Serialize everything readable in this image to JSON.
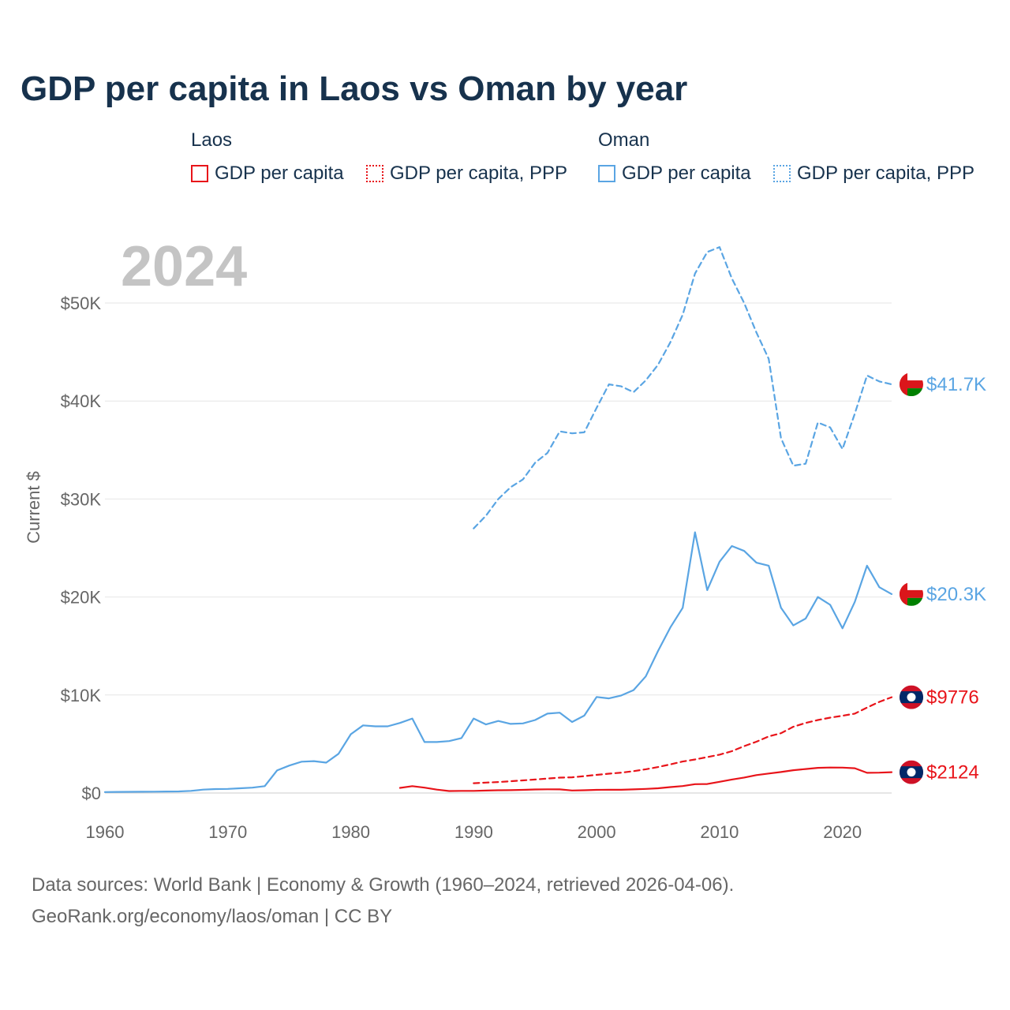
{
  "title": "GDP per capita in Laos vs Oman by year",
  "legend": {
    "groups": [
      {
        "name": "Laos",
        "items": [
          "GDP per capita",
          "GDP per capita, PPP"
        ],
        "color": "#e8141a"
      },
      {
        "name": "Oman",
        "items": [
          "GDP per capita",
          "GDP per capita, PPP"
        ],
        "color": "#5aa5e3"
      }
    ]
  },
  "year_watermark": "2024",
  "footer": {
    "line1": "Data sources: World Bank | Economy & Growth (1960–2024, retrieved 2026-04-06).",
    "line2": "GeoRank.org/economy/laos/oman | CC BY"
  },
  "chart_data": {
    "type": "line",
    "title": "GDP per capita in Laos vs Oman by year",
    "xlabel": "",
    "ylabel": "Current $",
    "xlim": [
      1960,
      2024
    ],
    "ylim": [
      0,
      55000
    ],
    "x_ticks": [
      1960,
      1970,
      1980,
      1990,
      2000,
      2010,
      2020
    ],
    "x_tick_labels": [
      "1960",
      "1970",
      "1980",
      "1990",
      "2000",
      "2010",
      "2020"
    ],
    "y_ticks": [
      0,
      10000,
      20000,
      30000,
      40000,
      50000
    ],
    "y_tick_labels": [
      "$0",
      "$10K",
      "$20K",
      "$30K",
      "$40K",
      "$50K"
    ],
    "grid": true,
    "series": [
      {
        "name": "Oman GDP per capita",
        "color": "#5aa5e3",
        "dashed": false,
        "end_label": "$20.3K",
        "flag": "oman",
        "x": [
          1960,
          1961,
          1962,
          1963,
          1964,
          1965,
          1966,
          1967,
          1968,
          1969,
          1970,
          1971,
          1972,
          1973,
          1974,
          1975,
          1976,
          1977,
          1978,
          1979,
          1980,
          1981,
          1982,
          1983,
          1984,
          1985,
          1986,
          1987,
          1988,
          1989,
          1990,
          1991,
          1992,
          1993,
          1994,
          1995,
          1996,
          1997,
          1998,
          1999,
          2000,
          2001,
          2002,
          2003,
          2004,
          2005,
          2006,
          2007,
          2008,
          2009,
          2010,
          2011,
          2012,
          2013,
          2014,
          2015,
          2016,
          2017,
          2018,
          2019,
          2020,
          2021,
          2022,
          2023,
          2024
        ],
        "y": [
          100,
          110,
          120,
          130,
          140,
          150,
          160,
          220,
          350,
          400,
          420,
          480,
          550,
          700,
          2300,
          2800,
          3200,
          3250,
          3100,
          4000,
          6000,
          6900,
          6800,
          6800,
          7150,
          7600,
          5200,
          5200,
          5300,
          5600,
          7600,
          7000,
          7350,
          7050,
          7100,
          7450,
          8100,
          8200,
          7250,
          7900,
          9800,
          9650,
          9950,
          10500,
          11900,
          14500,
          16900,
          18900,
          26600,
          20700,
          23600,
          25200,
          24700,
          23500,
          23200,
          18900,
          17100,
          17800,
          20000,
          19200,
          16800,
          19500,
          23200,
          21000,
          20300
        ]
      },
      {
        "name": "Oman GDP per capita, PPP",
        "color": "#5aa5e3",
        "dashed": true,
        "end_label": "$41.7K",
        "flag": "oman",
        "x": [
          1990,
          1991,
          1992,
          1993,
          1994,
          1995,
          1996,
          1997,
          1998,
          1999,
          2000,
          2001,
          2002,
          2003,
          2004,
          2005,
          2006,
          2007,
          2008,
          2009,
          2010,
          2011,
          2012,
          2013,
          2014,
          2015,
          2016,
          2017,
          2018,
          2019,
          2020,
          2021,
          2022,
          2023,
          2024
        ],
        "y": [
          27000,
          28300,
          30000,
          31200,
          32000,
          33700,
          34700,
          36900,
          36700,
          36800,
          39300,
          41700,
          41500,
          40900,
          42100,
          43700,
          46000,
          48800,
          53000,
          55200,
          55700,
          52500,
          50000,
          47000,
          44300,
          36200,
          33400,
          33600,
          37800,
          37300,
          35100,
          38700,
          42600,
          42000,
          41700
        ]
      },
      {
        "name": "Laos GDP per capita",
        "color": "#e8141a",
        "dashed": false,
        "end_label": "$2124",
        "flag": "laos",
        "x": [
          1984,
          1985,
          1986,
          1987,
          1988,
          1989,
          1990,
          1991,
          1992,
          1993,
          1994,
          1995,
          1996,
          1997,
          1998,
          1999,
          2000,
          2001,
          2002,
          2003,
          2004,
          2005,
          2006,
          2007,
          2008,
          2009,
          2010,
          2011,
          2012,
          2013,
          2014,
          2015,
          2016,
          2017,
          2018,
          2019,
          2020,
          2021,
          2022,
          2023,
          2024
        ],
        "y": [
          520,
          700,
          550,
          350,
          200,
          220,
          220,
          250,
          280,
          290,
          320,
          360,
          380,
          370,
          260,
          280,
          320,
          330,
          330,
          370,
          420,
          480,
          600,
          710,
          900,
          920,
          1140,
          1380,
          1580,
          1830,
          1990,
          2140,
          2330,
          2450,
          2570,
          2600,
          2590,
          2530,
          2060,
          2080,
          2124
        ]
      },
      {
        "name": "Laos GDP per capita, PPP",
        "color": "#e8141a",
        "dashed": true,
        "end_label": "$9776",
        "flag": "laos",
        "x": [
          1990,
          1991,
          1992,
          1993,
          1994,
          1995,
          1996,
          1997,
          1998,
          1999,
          2000,
          2001,
          2002,
          2003,
          2004,
          2005,
          2006,
          2007,
          2008,
          2009,
          2010,
          2011,
          2012,
          2013,
          2014,
          2015,
          2016,
          2017,
          2018,
          2019,
          2020,
          2021,
          2022,
          2023,
          2024
        ],
        "y": [
          1000,
          1060,
          1120,
          1200,
          1290,
          1380,
          1470,
          1570,
          1600,
          1720,
          1850,
          1970,
          2080,
          2230,
          2420,
          2650,
          2920,
          3210,
          3420,
          3660,
          3910,
          4270,
          4780,
          5230,
          5770,
          6100,
          6760,
          7150,
          7450,
          7690,
          7880,
          8100,
          8720,
          9300,
          9776
        ]
      }
    ]
  }
}
